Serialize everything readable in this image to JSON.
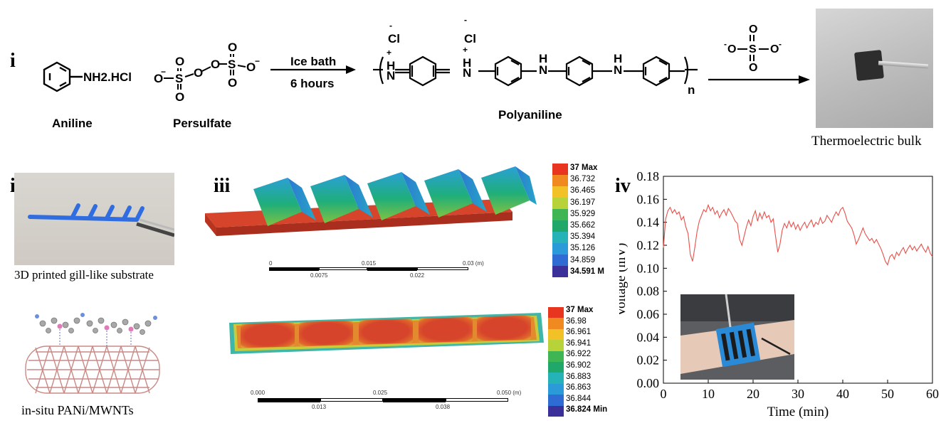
{
  "panels": {
    "i": {
      "label": "i",
      "reactant1": {
        "formula": "NH2.HCl",
        "name": "Aniline"
      },
      "reactant2": {
        "name": "Persulfate",
        "atoms": {
          "o": "O",
          "s": "S",
          "neg": "−"
        }
      },
      "condition_top": "Ice bath",
      "condition_bottom": "6 hours",
      "product": {
        "name": "Polyaniline",
        "cl": "Cl",
        "n_subscript": "n",
        "atoms": {
          "n": "N",
          "h": "H",
          "nh": "NH",
          "plus": "+",
          "minus": "-"
        }
      },
      "sulfate": {
        "atoms": {
          "o": "O",
          "s": "S",
          "minus": "-"
        }
      },
      "photo_caption": "Thermoelectric bulk"
    },
    "ii": {
      "label": "ii",
      "caption_top": "3D printed gill-like substrate",
      "caption_bottom": "in-situ PANi/MWNTs"
    },
    "iii": {
      "label": "iii",
      "legend1": {
        "values": [
          "37 Max",
          "36.732",
          "36.465",
          "36.197",
          "35.929",
          "35.662",
          "35.394",
          "35.126",
          "34.859",
          "34.591 M"
        ],
        "colors": [
          "#e8351f",
          "#f08a20",
          "#f2c027",
          "#b8d23a",
          "#40b554",
          "#1fa86a",
          "#25b3b8",
          "#2a9ad8",
          "#2e6bd2",
          "#3b2f9a"
        ]
      },
      "scale1": {
        "top": [
          "0",
          "0.015",
          "0.03 (m)"
        ],
        "bottom": [
          "0.0075",
          "0.022"
        ]
      },
      "legend2": {
        "values": [
          "37 Max",
          "36.98",
          "36.961",
          "36.941",
          "36.922",
          "36.902",
          "36.883",
          "36.863",
          "36.844",
          "36.824 Min"
        ],
        "colors": [
          "#e8351f",
          "#f08a20",
          "#f2c027",
          "#b8d23a",
          "#40b554",
          "#1fa86a",
          "#25b3b8",
          "#2a9ad8",
          "#2e6bd2",
          "#3b2f9a"
        ]
      },
      "scale2": {
        "top": [
          "0.000",
          "0.025",
          "0.050 (m)"
        ],
        "bottom": [
          "0.013",
          "0.038"
        ]
      }
    },
    "iv": {
      "label": "iv"
    }
  },
  "chart_data": {
    "type": "line",
    "xlabel": "Time (min)",
    "ylabel": "Voltage (mV)",
    "xlim": [
      0,
      60
    ],
    "ylim": [
      0,
      0.18
    ],
    "xticks": [
      0,
      10,
      20,
      30,
      40,
      50,
      60
    ],
    "yticks": [
      0.0,
      0.02,
      0.04,
      0.06,
      0.08,
      0.1,
      0.12,
      0.14,
      0.16,
      0.18
    ],
    "ytick_labels": [
      "0.00",
      "0.02",
      "0.04",
      "0.06",
      "0.08",
      "0.10",
      "0.12",
      "0.14",
      "0.16",
      "0.18"
    ],
    "series": [
      {
        "color": "#e8504a",
        "x": [
          0,
          0.5,
          1,
          1.5,
          2,
          2.5,
          3,
          3.5,
          4,
          4.5,
          5,
          5.5,
          6,
          6.5,
          7,
          7.5,
          8,
          8.5,
          9,
          9.5,
          10,
          10.5,
          11,
          11.5,
          12,
          12.5,
          13,
          13.5,
          14,
          14.5,
          15,
          15.5,
          16,
          16.5,
          17,
          17.5,
          18,
          18.5,
          19,
          19.5,
          20,
          20.5,
          21,
          21.5,
          22,
          22.5,
          23,
          23.5,
          24,
          24.5,
          25,
          25.5,
          26,
          26.5,
          27,
          27.5,
          28,
          28.5,
          29,
          29.5,
          30,
          30.5,
          31,
          31.5,
          32,
          32.5,
          33,
          33.5,
          34,
          34.5,
          35,
          35.5,
          36,
          36.5,
          37,
          37.5,
          38,
          38.5,
          39,
          39.5,
          40,
          40.5,
          41,
          41.5,
          42,
          42.5,
          43,
          43.5,
          44,
          44.5,
          45,
          45.5,
          46,
          46.5,
          47,
          47.5,
          48,
          48.5,
          49,
          49.5,
          50,
          50.5,
          51,
          51.5,
          52,
          52.5,
          53,
          53.5,
          54,
          54.5,
          55,
          55.5,
          56,
          56.5,
          57,
          57.5,
          58,
          58.5,
          59,
          59.5,
          60
        ],
        "values": [
          0.118,
          0.143,
          0.15,
          0.153,
          0.148,
          0.151,
          0.147,
          0.149,
          0.142,
          0.145,
          0.136,
          0.13,
          0.112,
          0.106,
          0.118,
          0.132,
          0.141,
          0.146,
          0.151,
          0.149,
          0.155,
          0.15,
          0.153,
          0.147,
          0.15,
          0.144,
          0.148,
          0.151,
          0.146,
          0.152,
          0.149,
          0.145,
          0.141,
          0.139,
          0.125,
          0.12,
          0.128,
          0.136,
          0.142,
          0.137,
          0.145,
          0.15,
          0.141,
          0.148,
          0.143,
          0.149,
          0.144,
          0.146,
          0.14,
          0.143,
          0.128,
          0.114,
          0.121,
          0.133,
          0.139,
          0.135,
          0.141,
          0.136,
          0.14,
          0.134,
          0.138,
          0.133,
          0.137,
          0.14,
          0.135,
          0.139,
          0.142,
          0.136,
          0.14,
          0.138,
          0.144,
          0.139,
          0.141,
          0.146,
          0.143,
          0.14,
          0.145,
          0.149,
          0.146,
          0.151,
          0.153,
          0.148,
          0.141,
          0.138,
          0.135,
          0.129,
          0.121,
          0.125,
          0.13,
          0.135,
          0.13,
          0.127,
          0.124,
          0.126,
          0.122,
          0.125,
          0.121,
          0.117,
          0.112,
          0.106,
          0.103,
          0.11,
          0.112,
          0.108,
          0.114,
          0.111,
          0.115,
          0.118,
          0.113,
          0.117,
          0.12,
          0.116,
          0.119,
          0.115,
          0.118,
          0.121,
          0.117,
          0.114,
          0.119,
          0.113,
          0.11
        ]
      }
    ]
  }
}
